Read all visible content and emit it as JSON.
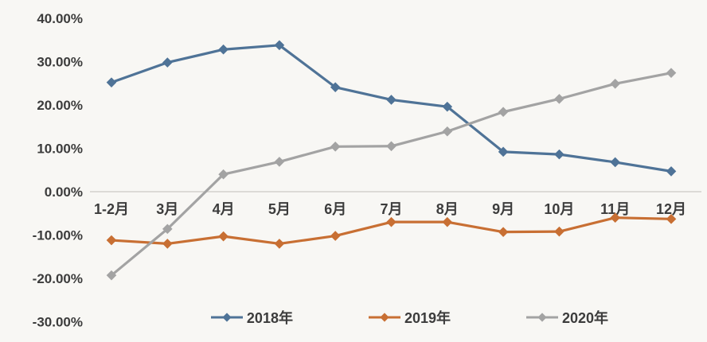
{
  "chart_data": {
    "type": "line",
    "title": "",
    "xlabel": "",
    "ylabel": "",
    "categories": [
      "1-2月",
      "3月",
      "4月",
      "5月",
      "6月",
      "7月",
      "8月",
      "9月",
      "10月",
      "11月",
      "12月"
    ],
    "series": [
      {
        "name": "2018年",
        "color": "#4f7397",
        "values": [
          25.2,
          29.8,
          32.8,
          33.8,
          24.1,
          21.2,
          19.6,
          9.2,
          8.6,
          6.8,
          4.7
        ]
      },
      {
        "name": "2019年",
        "color": "#c86f33",
        "values": [
          -11.2,
          -12.0,
          -10.3,
          -12.0,
          -10.2,
          -7.0,
          -7.0,
          -9.3,
          -9.2,
          -6.0,
          -6.3
        ]
      },
      {
        "name": "2020年",
        "color": "#a3a3a3",
        "values": [
          -19.3,
          -8.6,
          4.0,
          6.9,
          10.4,
          10.5,
          13.9,
          18.4,
          21.4,
          24.9,
          27.4
        ]
      }
    ],
    "yticks": [
      "40.00%",
      "30.00%",
      "20.00%",
      "10.00%",
      "0.00%",
      "-10.00%",
      "-20.00%",
      "-30.00%"
    ],
    "ylim": [
      -30,
      40
    ],
    "unit": "percent",
    "grid": "zero-line-only",
    "legend_position": "bottom",
    "marker": "diamond",
    "zero_line_color": "#d2d0cc",
    "text_color": "#3c3c3c"
  }
}
